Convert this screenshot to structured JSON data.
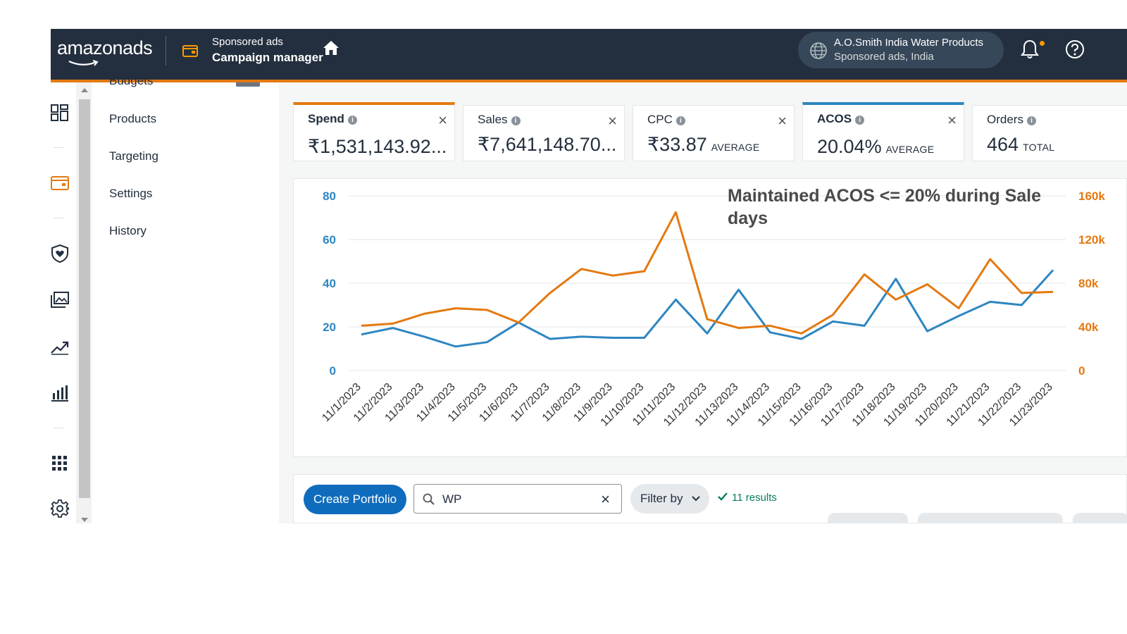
{
  "header": {
    "logo": "amazonads",
    "product_sub": "Sponsored ads",
    "product_main": "Campaign manager",
    "account_name": "A.O.Smith India Water Products",
    "account_sub": "Sponsored ads, India",
    "colors": {
      "bg": "#232f3e",
      "accent": "#e47911"
    }
  },
  "sidebar": {
    "peek_label": "Budgets",
    "items": [
      {
        "label": "Products"
      },
      {
        "label": "Targeting"
      },
      {
        "label": "Settings"
      },
      {
        "label": "History"
      }
    ]
  },
  "metrics": [
    {
      "label": "Spend",
      "value": "₹1,531,143.92...",
      "suffix": "",
      "selected": "orange"
    },
    {
      "label": "Sales",
      "value": "₹7,641,148.70...",
      "suffix": "",
      "selected": ""
    },
    {
      "label": "CPC",
      "value": "₹33.87",
      "suffix": "AVERAGE",
      "selected": ""
    },
    {
      "label": "ACOS",
      "value": "20.04%",
      "suffix": "AVERAGE",
      "selected": "blue"
    },
    {
      "label": "Orders",
      "value": "464",
      "suffix": "TOTAL",
      "selected": ""
    }
  ],
  "annotation": "Maintained ACOS <= 20% during Sale days",
  "chart_data": {
    "type": "line",
    "x": [
      "11/1/2023",
      "11/2/2023",
      "11/3/2023",
      "11/4/2023",
      "11/5/2023",
      "11/6/2023",
      "11/7/2023",
      "11/8/2023",
      "11/9/2023",
      "11/10/2023",
      "11/11/2023",
      "11/12/2023",
      "11/13/2023",
      "11/14/2023",
      "11/15/2023",
      "11/16/2023",
      "11/17/2023",
      "11/18/2023",
      "11/19/2023",
      "11/20/2023",
      "11/21/2023",
      "11/22/2023",
      "11/23/2023"
    ],
    "series": [
      {
        "color": "#2e86c1",
        "axis": "left",
        "values": [
          16.5,
          19.5,
          15.5,
          11,
          13,
          22,
          14.5,
          15.5,
          15,
          15,
          32.5,
          17,
          37,
          17.5,
          14.5,
          22.5,
          20.5,
          42,
          18,
          25,
          31.5,
          30,
          46
        ]
      },
      {
        "color": "#e47911",
        "axis": "right",
        "values": [
          41000,
          43000,
          52000,
          57000,
          55500,
          44000,
          71000,
          93000,
          87000,
          91000,
          145000,
          47000,
          39000,
          41000,
          34000,
          51000,
          88000,
          65000,
          79000,
          57000,
          102000,
          71000,
          72000
        ]
      }
    ],
    "yleft": {
      "ticks": [
        "80",
        "60",
        "40",
        "20",
        "0"
      ],
      "lim": [
        0,
        80
      ]
    },
    "yright": {
      "ticks": [
        "160k",
        "120k",
        "80k",
        "40k",
        "0"
      ],
      "lim": [
        0,
        160000
      ]
    },
    "grid": true,
    "colors": {
      "left_axis": "#2e86c1",
      "right_axis": "#e47911",
      "grid": "#e3e6e8"
    }
  },
  "toolbar": {
    "create_label": "Create Portfolio",
    "search_value": "WP",
    "filter_label": "Filter by",
    "results_text": "11 results"
  }
}
